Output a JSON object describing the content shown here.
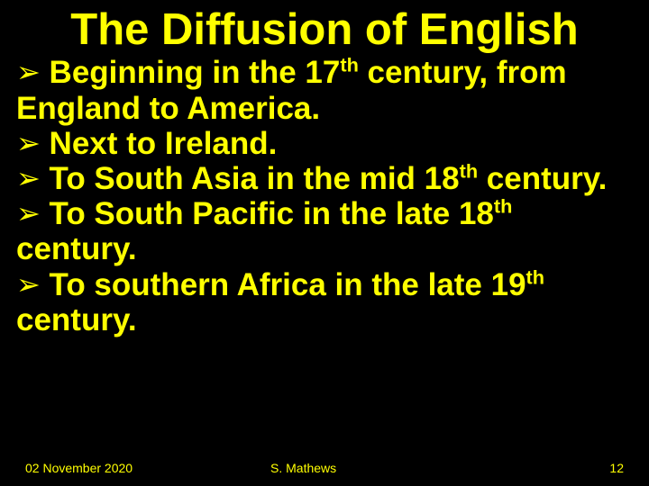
{
  "title": "The Diffusion of English",
  "bullets": [
    {
      "pre": "Beginning in the 17",
      "sup": "th",
      "post": " century, from England to America."
    },
    {
      "pre": "Next to Ireland.",
      "sup": "",
      "post": ""
    },
    {
      "pre": "To South Asia in the mid 18",
      "sup": "th",
      "post": " century."
    },
    {
      "pre": "To South Pacific in the late 18",
      "sup": "th",
      "post": " century."
    },
    {
      "pre": "To southern Africa in the late 19",
      "sup": "th",
      "post": " century."
    }
  ],
  "arrow_glyph": "➢",
  "footer": {
    "date": "02 November 2020",
    "author": "S. Mathews",
    "page": "12"
  },
  "colors": {
    "background": "#000000",
    "text": "#ffff00"
  }
}
